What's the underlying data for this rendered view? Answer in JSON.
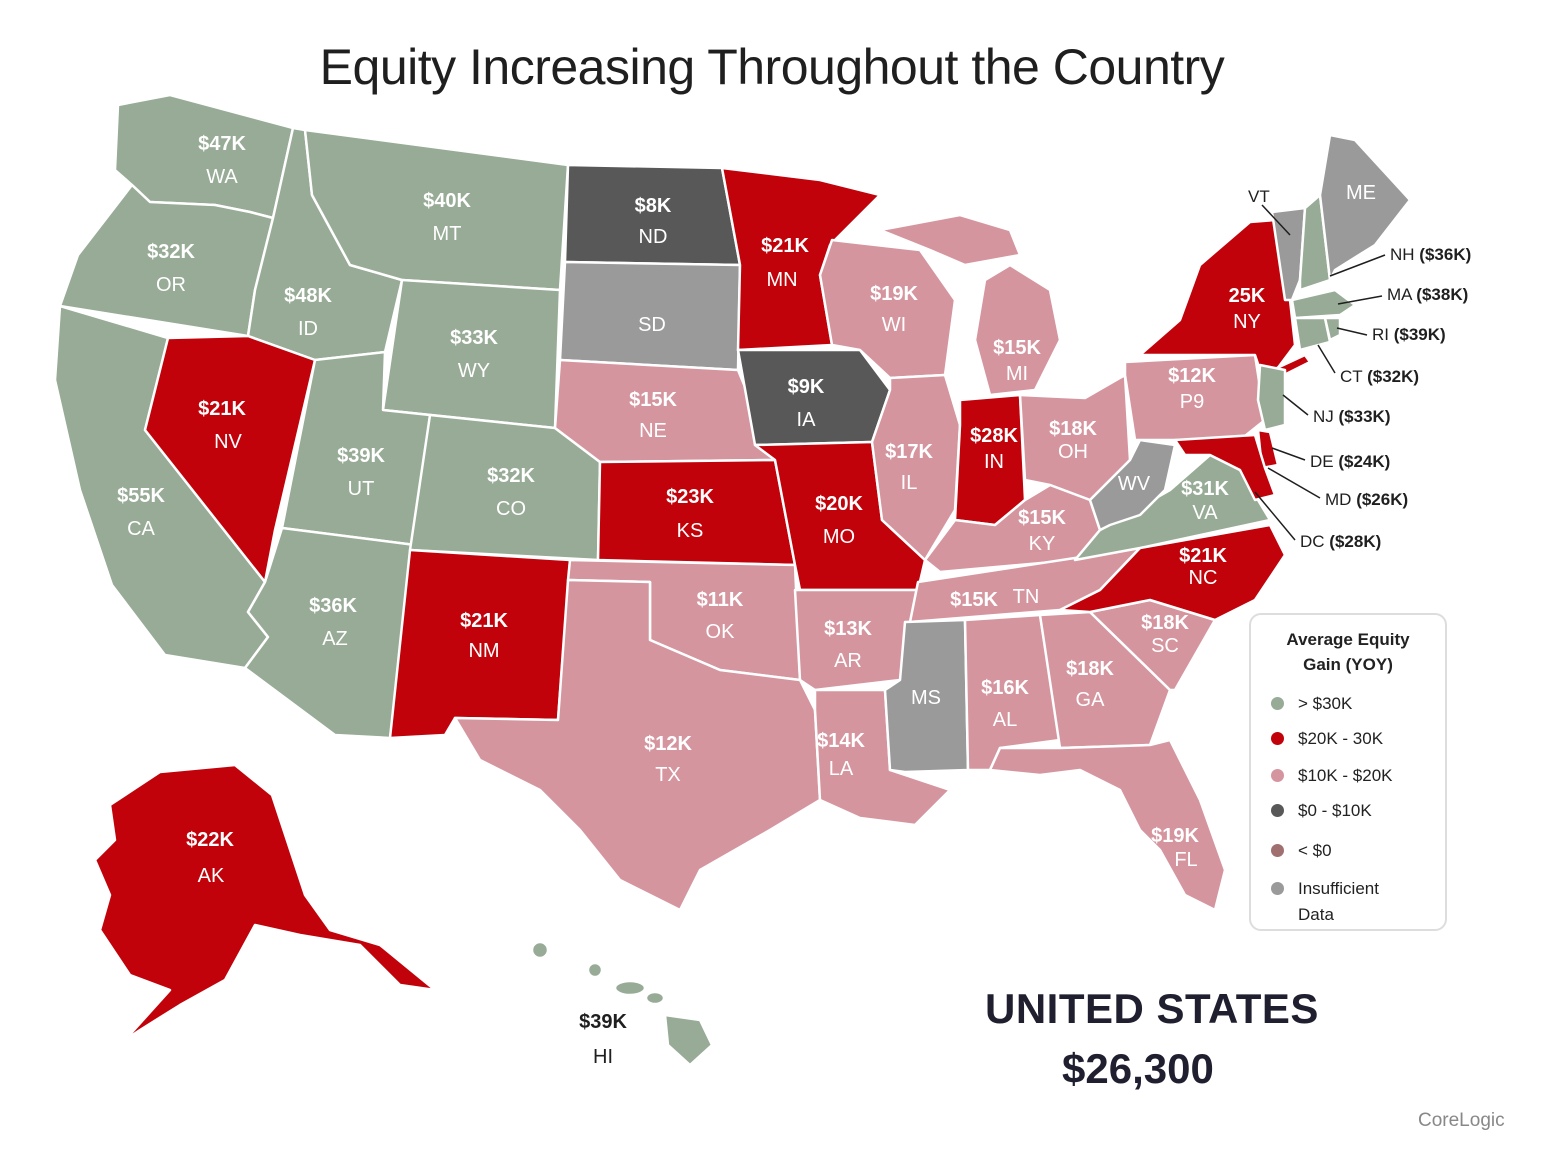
{
  "title": "Equity Increasing Throughout the Country",
  "colors": {
    "gt30": "#97ab96",
    "20to30": "#c2020a",
    "10to20": "#d5959f",
    "0to10": "#585858",
    "lt0": "#a07070",
    "insufficient": "#9a9a9a"
  },
  "legend": {
    "title_line1": "Average Equity",
    "title_line2": "Gain (YOY)",
    "items": [
      {
        "label": "> $30K",
        "color": "#97ab96"
      },
      {
        "label": "$20K - 30K",
        "color": "#c2020a"
      },
      {
        "label": "$10K - $20K",
        "color": "#d5959f"
      },
      {
        "label": "$0 - $10K",
        "color": "#585858"
      },
      {
        "label": "< $0",
        "color": "#a07070"
      },
      {
        "label": "Insufficient",
        "color": "#9a9a9a"
      },
      {
        "label": "Data",
        "color": ""
      }
    ]
  },
  "states": {
    "WA": {
      "value": "$47K",
      "abbr": "WA",
      "category": "gt30"
    },
    "OR": {
      "value": "$32K",
      "abbr": "OR",
      "category": "gt30"
    },
    "CA": {
      "value": "$55K",
      "abbr": "CA",
      "category": "gt30"
    },
    "ID": {
      "value": "$48K",
      "abbr": "ID",
      "category": "gt30"
    },
    "NV": {
      "value": "$21K",
      "abbr": "NV",
      "category": "20to30"
    },
    "MT": {
      "value": "$40K",
      "abbr": "MT",
      "category": "gt30"
    },
    "WY": {
      "value": "$33K",
      "abbr": "WY",
      "category": "gt30"
    },
    "UT": {
      "value": "$39K",
      "abbr": "UT",
      "category": "gt30"
    },
    "AZ": {
      "value": "$36K",
      "abbr": "AZ",
      "category": "gt30"
    },
    "CO": {
      "value": "$32K",
      "abbr": "CO",
      "category": "gt30"
    },
    "NM": {
      "value": "$21K",
      "abbr": "NM",
      "category": "20to30"
    },
    "ND": {
      "value": "$8K",
      "abbr": "ND",
      "category": "0to10"
    },
    "SD": {
      "value": "",
      "abbr": "SD",
      "category": "insufficient"
    },
    "NE": {
      "value": "$15K",
      "abbr": "NE",
      "category": "10to20"
    },
    "KS": {
      "value": "$23K",
      "abbr": "KS",
      "category": "20to30"
    },
    "OK": {
      "value": "$11K",
      "abbr": "OK",
      "category": "10to20"
    },
    "TX": {
      "value": "$12K",
      "abbr": "TX",
      "category": "10to20"
    },
    "MN": {
      "value": "$21K",
      "abbr": "MN",
      "category": "20to30"
    },
    "IA": {
      "value": "$9K",
      "abbr": "IA",
      "category": "0to10"
    },
    "MO": {
      "value": "$20K",
      "abbr": "MO",
      "category": "20to30"
    },
    "AR": {
      "value": "$13K",
      "abbr": "AR",
      "category": "10to20"
    },
    "LA": {
      "value": "$14K",
      "abbr": "LA",
      "category": "10to20"
    },
    "WI": {
      "value": "$19K",
      "abbr": "WI",
      "category": "10to20"
    },
    "IL": {
      "value": "$17K",
      "abbr": "IL",
      "category": "10to20"
    },
    "MI": {
      "value": "$15K",
      "abbr": "MI",
      "category": "10to20"
    },
    "IN": {
      "value": "$28K",
      "abbr": "IN",
      "category": "20to30"
    },
    "OH": {
      "value": "$18K",
      "abbr": "OH",
      "category": "10to20"
    },
    "KY": {
      "value": "$15K",
      "abbr": "KY",
      "category": "10to20"
    },
    "TN": {
      "value": "$15K",
      "abbr": "TN",
      "category": "10to20"
    },
    "MS": {
      "value": "",
      "abbr": "MS",
      "category": "insufficient"
    },
    "AL": {
      "value": "$16K",
      "abbr": "AL",
      "category": "10to20"
    },
    "GA": {
      "value": "$18K",
      "abbr": "GA",
      "category": "10to20"
    },
    "FL": {
      "value": "$19K",
      "abbr": "FL",
      "category": "10to20"
    },
    "SC": {
      "value": "$18K",
      "abbr": "SC",
      "category": "10to20"
    },
    "NC": {
      "value": "$21K",
      "abbr": "NC",
      "category": "20to30"
    },
    "VA": {
      "value": "$31K",
      "abbr": "VA",
      "category": "gt30"
    },
    "WV": {
      "value": "",
      "abbr": "WV",
      "category": "insufficient"
    },
    "PA": {
      "value": "$12K",
      "abbr": "P9",
      "category": "10to20"
    },
    "NY": {
      "value": "25K",
      "abbr": "NY",
      "category": "20to30"
    },
    "VT": {
      "value": "",
      "abbr": "VT",
      "category": "insufficient"
    },
    "ME": {
      "value": "",
      "abbr": "ME",
      "category": "insufficient"
    },
    "AK": {
      "value": "$22K",
      "abbr": "AK",
      "category": "20to30"
    },
    "HI": {
      "value": "$39K",
      "abbr": "HI",
      "category": "gt30"
    }
  },
  "callouts": {
    "NH": {
      "abbr": "NH",
      "value": "($36K)",
      "category": "gt30"
    },
    "MA": {
      "abbr": "MA",
      "value": "($38K)",
      "category": "gt30"
    },
    "RI": {
      "abbr": "RI",
      "value": "($39K)",
      "category": "gt30"
    },
    "CT": {
      "abbr": "CT",
      "value": "($32K)",
      "category": "gt30"
    },
    "NJ": {
      "abbr": "NJ",
      "value": "($33K)",
      "category": "gt30"
    },
    "DE": {
      "abbr": "DE",
      "value": "($24K)",
      "category": "20to30"
    },
    "MD": {
      "abbr": "MD",
      "value": "($26K)",
      "category": "20to30"
    },
    "DC": {
      "abbr": "DC",
      "value": "($28K)",
      "category": "20to30"
    }
  },
  "national": {
    "label": "UNITED STATES",
    "value": "$26,300"
  },
  "source": "CoreLogic"
}
